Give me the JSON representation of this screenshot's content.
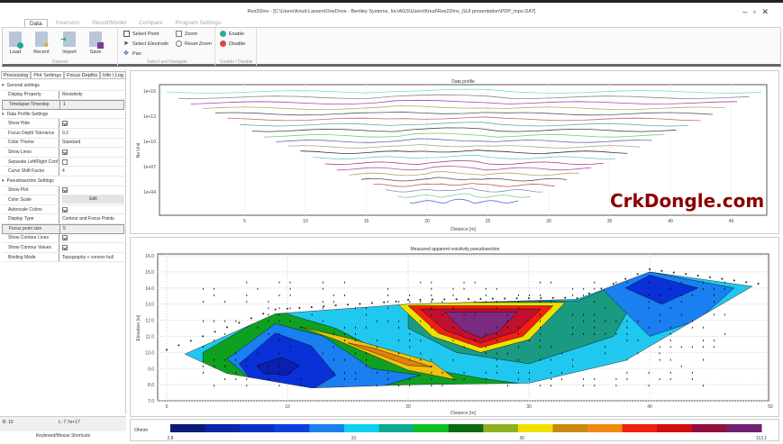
{
  "window": {
    "title": "Res2Dinv - [C:\\Users\\Knud.Lassen\\OneDrive - Bentley Systems, Inc\\AGS\\Users\\Knud\\Res2Dinv_GUI presentation\\PDP_topo.DAT]",
    "controls": "– ▫ ✕"
  },
  "ribbon": {
    "tabs": [
      "Data",
      "Inversion",
      "Result/Model",
      "Compare",
      "Program Settings"
    ],
    "dataset": {
      "label": "Dataset",
      "buttons": [
        "Load",
        "Recent",
        "Import",
        "Save"
      ]
    },
    "select": {
      "label": "Select and Navigate",
      "buttons": [
        "Select Point",
        "Select Electrode",
        "Pan",
        "Zoom",
        "Reset Zoom"
      ]
    },
    "enable": {
      "label": "Enable / Disable",
      "buttons": [
        "Enable",
        "Disable"
      ]
    }
  },
  "left_panel": {
    "tabs": [
      "Processing",
      "Plot Settings",
      "Focus Depths",
      "Info \\ Log"
    ],
    "rows": [
      {
        "type": "section",
        "label": "General settings"
      },
      {
        "label": "Display Property",
        "value": "Resistivity"
      },
      {
        "label": "Timelapse Timestep",
        "value": "1",
        "selected": true
      },
      {
        "type": "section",
        "label": "Data Profile Settings"
      },
      {
        "label": "Show Hide",
        "check": true
      },
      {
        "label": "Focus Depth Tolerance",
        "value": "0.2"
      },
      {
        "label": "Color Theme",
        "value": "Standard"
      },
      {
        "label": "Show Lines",
        "check": true
      },
      {
        "label": "Separate Left/Right Conf",
        "check": false
      },
      {
        "label": "Curve Shift Factor",
        "value": "4"
      },
      {
        "type": "section",
        "label": "Pseudosection Settings"
      },
      {
        "label": "Show Plot",
        "check": true
      },
      {
        "label": "Color Scale",
        "button": "Edit"
      },
      {
        "label": "Autoscale Colors",
        "check": true
      },
      {
        "label": "Display Type",
        "value": "Contour and Focus Points"
      },
      {
        "label": "Focus point size",
        "value": "5",
        "selected": true
      },
      {
        "label": "Show Contour Lines",
        "check": true
      },
      {
        "label": "Show Contour Values",
        "check": true
      },
      {
        "label": "Binding Mode",
        "value": "Topography + convex hull"
      }
    ]
  },
  "status": {
    "b": "B: 15",
    "l": "L: 7.7e+17",
    "shortcuts": "Keyboard/Mouse Shortcuts"
  },
  "chart_data": [
    {
      "type": "line",
      "title": "Data profile",
      "xlabel": "Distance [m]",
      "ylabel": "No Unit",
      "x_ticks": [
        "5",
        "10",
        "15",
        "20",
        "25",
        "30",
        "35",
        "40",
        "45"
      ],
      "y_ticks": [
        "1e+16",
        "1e+13",
        "1e+10",
        "1e+07",
        "1e+04"
      ],
      "y_scale": "log",
      "xlim": [
        0,
        50
      ],
      "grid": true
    },
    {
      "type": "heatmap",
      "title": "Measured apparent resistivity pseudosection",
      "xlabel": "Distance [m]",
      "ylabel": "Elevation [m]",
      "x_ticks": [
        "0",
        "10",
        "20",
        "30",
        "40",
        "50"
      ],
      "y_ticks": [
        "16.0",
        "15.0",
        "14.0",
        "13.0",
        "12.0",
        "11.0",
        "10.0",
        "9.0",
        "8.0",
        "7.0"
      ],
      "xlim": [
        0,
        50
      ],
      "ylim": [
        7,
        16
      ],
      "grid": true
    }
  ],
  "colorbar": {
    "label": "Ohmm",
    "tick_labels": [
      "2.8",
      "10",
      "30",
      "113.1"
    ],
    "colors": [
      "#0a1a7a",
      "#0b24a8",
      "#0a30c8",
      "#0a40e0",
      "#1a7ff0",
      "#10d0f0",
      "#10a890",
      "#10c020",
      "#0a6a10",
      "#90b020",
      "#f0e000",
      "#c88a10",
      "#f08a10",
      "#f02010",
      "#d01010",
      "#901040",
      "#702070"
    ]
  },
  "watermark": "CrkDongle.com"
}
